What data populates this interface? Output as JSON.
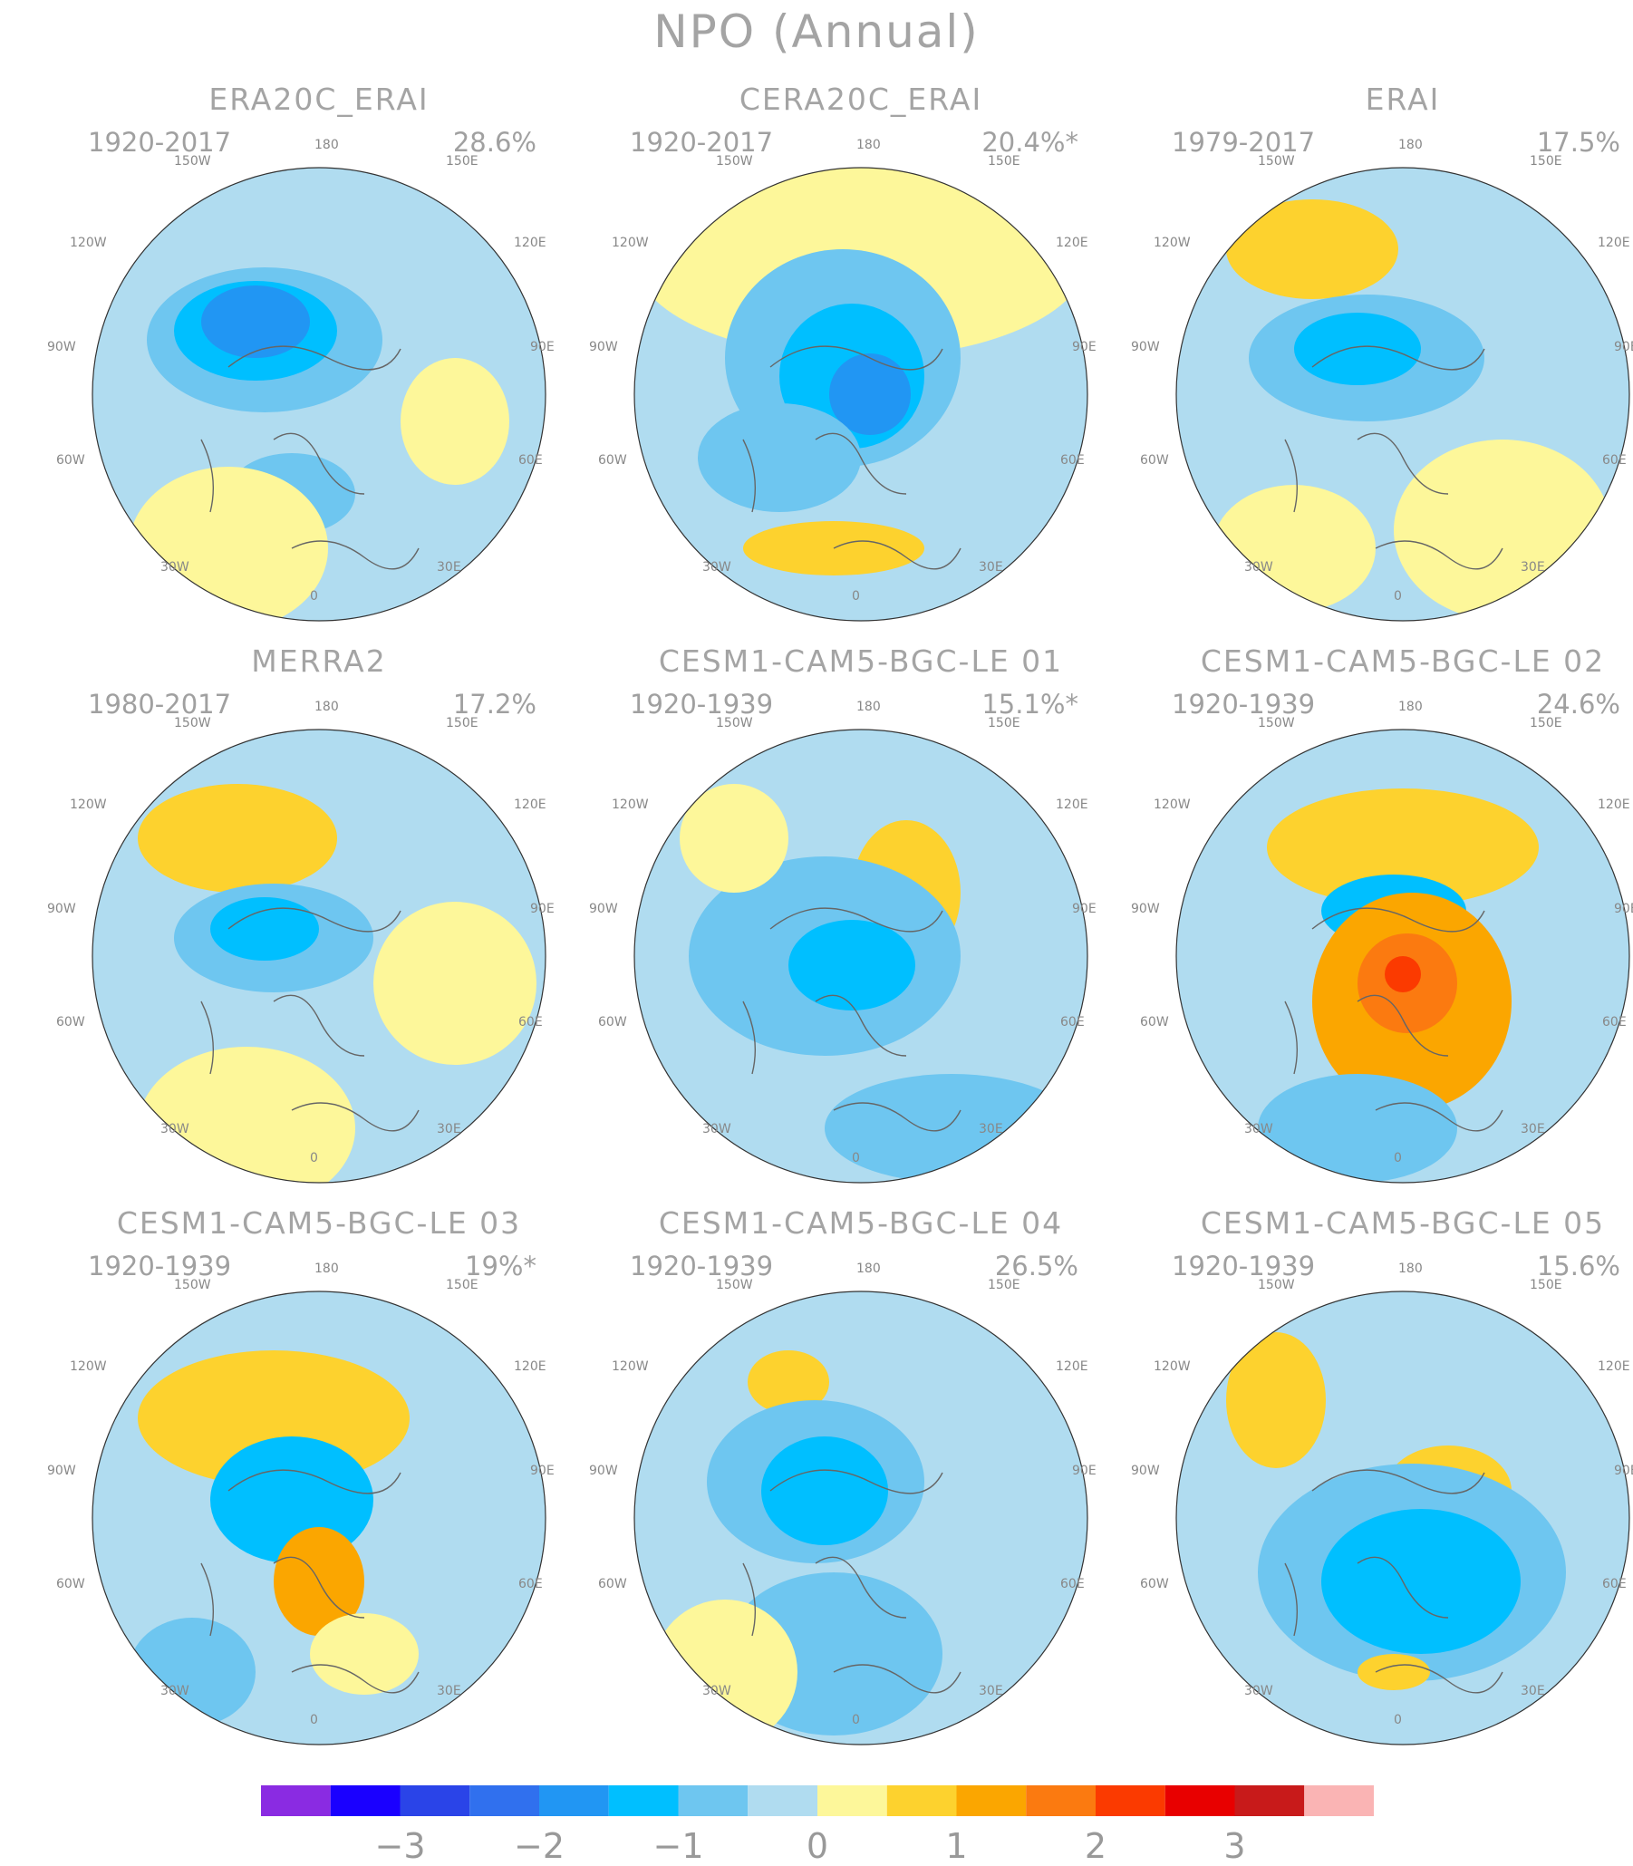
{
  "title": "NPO (Annual)",
  "panels": [
    {
      "title": "ERA20C_ERAI",
      "period": "1920-2017",
      "percent": "28.6%"
    },
    {
      "title": "CERA20C_ERAI",
      "period": "1920-2017",
      "percent": "20.4%*"
    },
    {
      "title": "ERAI",
      "period": "1979-2017",
      "percent": "17.5%"
    },
    {
      "title": "MERRA2",
      "period": "1980-2017",
      "percent": "17.2%"
    },
    {
      "title": "CESM1-CAM5-BGC-LE 01",
      "period": "1920-1939",
      "percent": "15.1%*"
    },
    {
      "title": "CESM1-CAM5-BGC-LE 02",
      "period": "1920-1939",
      "percent": "24.6%"
    },
    {
      "title": "CESM1-CAM5-BGC-LE 03",
      "period": "1920-1939",
      "percent": "19%*"
    },
    {
      "title": "CESM1-CAM5-BGC-LE 04",
      "period": "1920-1939",
      "percent": "26.5%"
    },
    {
      "title": "CESM1-CAM5-BGC-LE 05",
      "period": "1920-1939",
      "percent": "15.6%"
    }
  ],
  "longitude_labels": [
    "180",
    "150W",
    "150E",
    "120W",
    "120E",
    "90W",
    "90E",
    "60W",
    "60E",
    "30W",
    "30E",
    "0"
  ],
  "colorbar": {
    "colors": [
      "#8a2be2",
      "#1a00ff",
      "#2a44e8",
      "#3070ee",
      "#2196f3",
      "#00bfff",
      "#6ec6f0",
      "#b0dcf0",
      "#fdf79a",
      "#fdd22e",
      "#fba600",
      "#fb7a10",
      "#fb3a00",
      "#e80000",
      "#c81a1a",
      "#fab4b4"
    ],
    "tick_labels": [
      "−3",
      "−2",
      "−1",
      "0",
      "1",
      "2",
      "3"
    ]
  },
  "fill_colors": {
    "ocean_base": "#b0dcf0",
    "land_pos": "#fdf79a"
  }
}
